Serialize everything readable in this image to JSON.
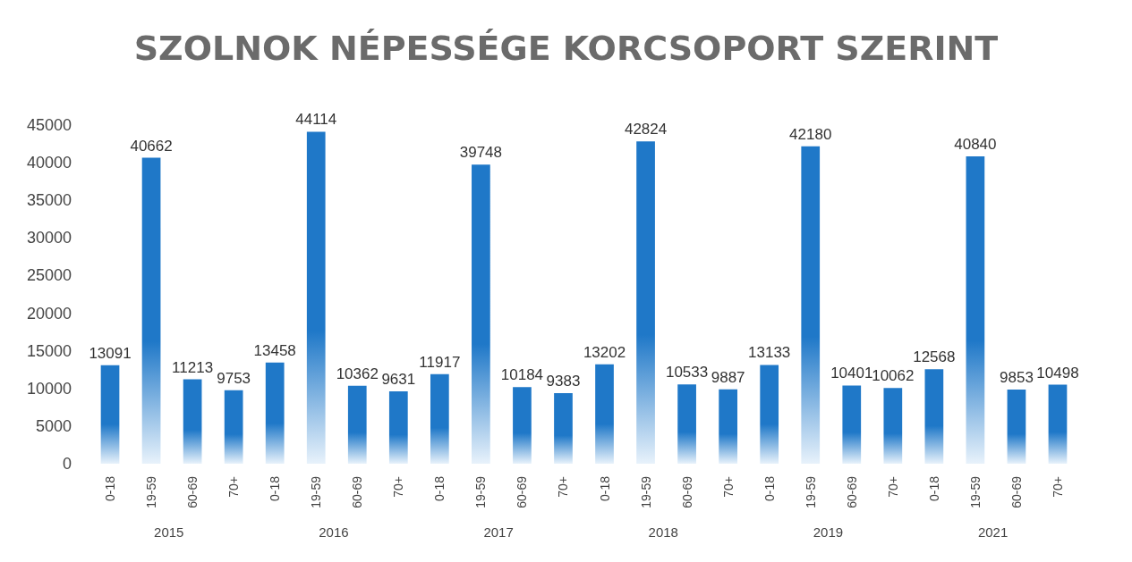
{
  "chart_data": {
    "type": "bar",
    "title": "SZOLNOK NÉPESSÉGE KORCSOPORT SZERINT",
    "categories": [
      "0-18",
      "19-59",
      "60-69",
      "70+",
      "0-18",
      "19-59",
      "60-69",
      "70+",
      "0-18",
      "19-59",
      "60-69",
      "70+",
      "0-18",
      "19-59",
      "60-69",
      "70+",
      "0-18",
      "19-59",
      "60-69",
      "70+",
      "0-18",
      "19-59",
      "60-69",
      "70+"
    ],
    "values": [
      13091,
      40662,
      11213,
      9753,
      13458,
      44114,
      10362,
      9631,
      11917,
      39748,
      10184,
      9383,
      13202,
      42824,
      10533,
      9887,
      13133,
      42180,
      10401,
      10062,
      12568,
      40840,
      9853,
      10498
    ],
    "color": "#1f78c8",
    "annotations": [
      "2015",
      "2016",
      "2017",
      "2018",
      "2019",
      "2021"
    ],
    "ylim": [
      0,
      45000
    ],
    "yticks": [
      0,
      5000,
      10000,
      15000,
      20000,
      25000,
      30000,
      35000,
      40000,
      45000
    ],
    "grid": false,
    "data_labels": true
  }
}
